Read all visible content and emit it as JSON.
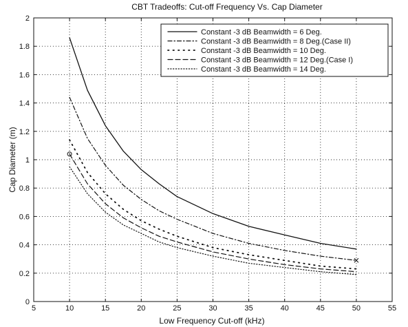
{
  "chart_data": {
    "type": "line",
    "title": "CBT Tradeoffs:  Cut-off Frequency Vs. Cap Diameter",
    "xlabel": "Low Frequency Cut-off (kHz)",
    "ylabel": "Cap Diameter (m)",
    "xlim": [
      5,
      55
    ],
    "ylim": [
      0,
      2
    ],
    "xticks": [
      5,
      10,
      15,
      20,
      25,
      30,
      35,
      40,
      45,
      50,
      55
    ],
    "yticks": [
      0,
      0.2,
      0.4,
      0.6,
      0.8,
      1,
      1.2,
      1.4,
      1.6,
      1.8,
      2
    ],
    "xtick_labels": [
      "5",
      "10",
      "15",
      "20",
      "25",
      "30",
      "35",
      "40",
      "45",
      "50",
      "55"
    ],
    "ytick_labels": [
      "0",
      "0.2",
      "0.4",
      "0.6",
      "0.8",
      "1",
      "1.2",
      "1.4",
      "1.6",
      "1.8",
      "2"
    ],
    "grid": true,
    "legend_position": "top-right",
    "x": [
      10,
      12.5,
      15,
      17.5,
      20,
      22.5,
      25,
      30,
      35,
      40,
      45,
      50
    ],
    "series": [
      {
        "name": "Constant -3 dB Beamwidth =  6 Deg.",
        "style": "solid",
        "values": [
          1.86,
          1.49,
          1.24,
          1.06,
          0.93,
          0.83,
          0.74,
          0.62,
          0.53,
          0.47,
          0.41,
          0.37
        ]
      },
      {
        "name": "Constant -3 dB Beamwidth =  8 Deg.(Case II)",
        "style": "dashdot",
        "values": [
          1.44,
          1.15,
          0.96,
          0.82,
          0.72,
          0.64,
          0.58,
          0.48,
          0.41,
          0.36,
          0.32,
          0.29
        ]
      },
      {
        "name": "Constant -3 dB Beamwidth = 10 Deg.",
        "style": "dotted-sparse",
        "values": [
          1.14,
          0.91,
          0.76,
          0.65,
          0.57,
          0.51,
          0.46,
          0.38,
          0.33,
          0.29,
          0.25,
          0.23
        ]
      },
      {
        "name": "Constant -3 dB Beamwidth = 12 Deg.(Case I)",
        "style": "dashed",
        "values": [
          1.04,
          0.83,
          0.69,
          0.59,
          0.52,
          0.46,
          0.42,
          0.35,
          0.3,
          0.26,
          0.23,
          0.21
        ]
      },
      {
        "name": "Constant -3 dB Beamwidth = 14 Deg.",
        "style": "dotted",
        "values": [
          0.95,
          0.76,
          0.63,
          0.54,
          0.48,
          0.42,
          0.38,
          0.32,
          0.27,
          0.24,
          0.21,
          0.19
        ]
      }
    ],
    "markers": [
      {
        "symbol": "o",
        "x": 10,
        "y": 1.04
      },
      {
        "symbol": "x",
        "x": 50,
        "y": 0.29
      }
    ]
  }
}
